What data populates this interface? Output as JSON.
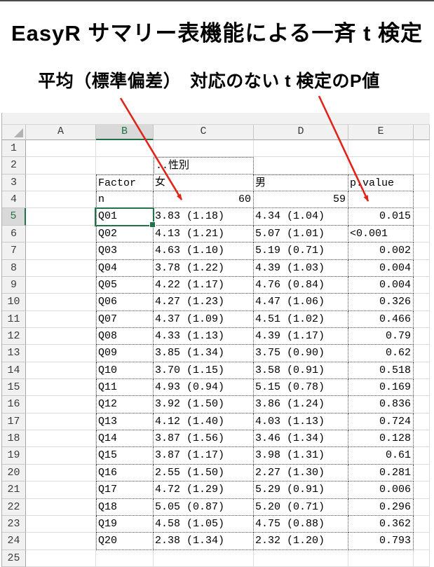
{
  "title": "EasyR サマリー表機能による一斉 t 検定",
  "subtitle": "平均（標準偏差）　対応のない t 検定のP値",
  "colors": {
    "accent_green": "#217346",
    "arrow_red": "#E2231A",
    "header_bg": "#F1F1F1",
    "selected_header_bg": "#D9D9D9",
    "gridline": "#DCDCDC"
  },
  "sheet": {
    "column_headers": [
      "A",
      "B",
      "C",
      "D",
      "E"
    ],
    "visible_row_numbers": [
      "1",
      "2",
      "3",
      "4",
      "5",
      "6",
      "7",
      "8",
      "9",
      "10",
      "11",
      "12",
      "13",
      "14",
      "15",
      "16",
      "17",
      "18",
      "19",
      "20",
      "21",
      "22",
      "23",
      "24",
      "25"
    ],
    "selected_column": "B",
    "selected_row": "5",
    "selected_cell": "B5",
    "gender_header": "..性別",
    "header_row": {
      "factor": "Factor",
      "female": "女",
      "male": "男",
      "pvalue": "p.value"
    },
    "n_row": {
      "label": "n",
      "female": "60",
      "male": "59"
    },
    "data_rows": [
      {
        "factor": "Q01",
        "female": "3.83 (1.18)",
        "male": "4.34 (1.04)",
        "pvalue": "0.015"
      },
      {
        "factor": "Q02",
        "female": "4.13 (1.21)",
        "male": "5.07 (1.01)",
        "pvalue": "<0.001"
      },
      {
        "factor": "Q03",
        "female": "4.63 (1.10)",
        "male": "5.19 (0.71)",
        "pvalue": "0.002"
      },
      {
        "factor": "Q04",
        "female": "3.78 (1.22)",
        "male": "4.39 (1.03)",
        "pvalue": "0.004"
      },
      {
        "factor": "Q05",
        "female": "4.22 (1.17)",
        "male": "4.76 (0.84)",
        "pvalue": "0.004"
      },
      {
        "factor": "Q06",
        "female": "4.27 (1.23)",
        "male": "4.47 (1.06)",
        "pvalue": "0.326"
      },
      {
        "factor": "Q07",
        "female": "4.37 (1.09)",
        "male": "4.51 (1.02)",
        "pvalue": "0.466"
      },
      {
        "factor": "Q08",
        "female": "4.33 (1.13)",
        "male": "4.39 (1.17)",
        "pvalue": "0.79"
      },
      {
        "factor": "Q09",
        "female": "3.85 (1.34)",
        "male": "3.75 (0.90)",
        "pvalue": "0.62"
      },
      {
        "factor": "Q10",
        "female": "3.70 (1.15)",
        "male": "3.58 (0.91)",
        "pvalue": "0.518"
      },
      {
        "factor": "Q11",
        "female": "4.93 (0.94)",
        "male": "5.15 (0.78)",
        "pvalue": "0.169"
      },
      {
        "factor": "Q12",
        "female": "3.92 (1.50)",
        "male": "3.86 (1.24)",
        "pvalue": "0.836"
      },
      {
        "factor": "Q13",
        "female": "4.12 (1.40)",
        "male": "4.03 (1.13)",
        "pvalue": "0.724"
      },
      {
        "factor": "Q14",
        "female": "3.87 (1.56)",
        "male": "3.46 (1.34)",
        "pvalue": "0.128"
      },
      {
        "factor": "Q15",
        "female": "3.87 (1.17)",
        "male": "3.98 (1.31)",
        "pvalue": "0.61"
      },
      {
        "factor": "Q16",
        "female": "2.55 (1.50)",
        "male": "2.27 (1.30)",
        "pvalue": "0.281"
      },
      {
        "factor": "Q17",
        "female": "4.72 (1.29)",
        "male": "5.29 (0.91)",
        "pvalue": "0.006"
      },
      {
        "factor": "Q18",
        "female": "5.05 (0.87)",
        "male": "5.20 (0.71)",
        "pvalue": "0.296"
      },
      {
        "factor": "Q19",
        "female": "4.58 (1.05)",
        "male": "4.75 (0.88)",
        "pvalue": "0.362"
      },
      {
        "factor": "Q20",
        "female": "2.38 (1.34)",
        "male": "2.32 (1.20)",
        "pvalue": "0.793"
      }
    ]
  }
}
